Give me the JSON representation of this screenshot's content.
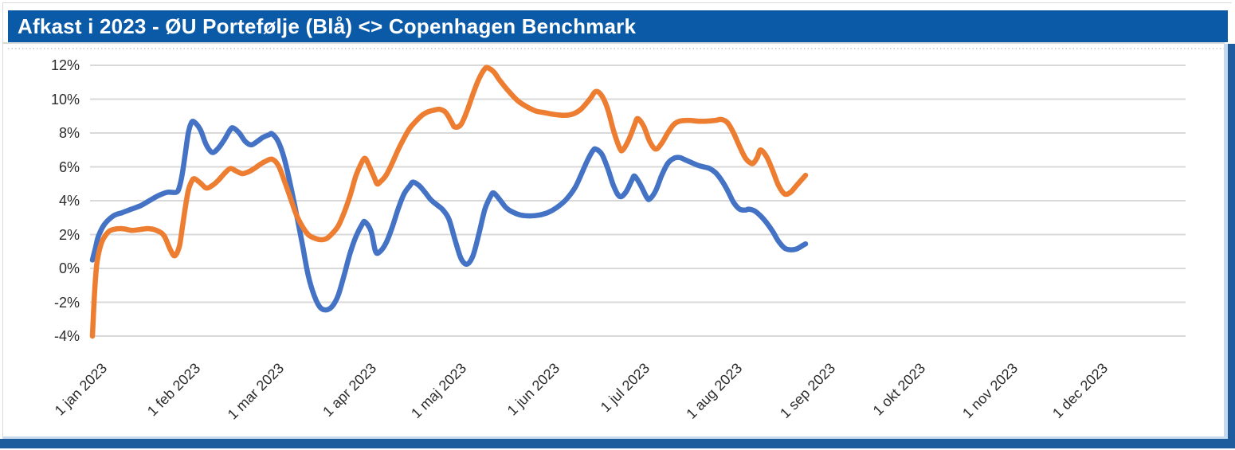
{
  "header": {
    "title": "Afkast i 2023 - ØU Portefølje (Blå) <> Copenhagen Benchmark"
  },
  "colors": {
    "header_bg": "#0b5aa7",
    "frame_dark": "#1e5c9e",
    "frame_light": "#c7d9ec",
    "gridline": "#d9d9d9",
    "axis_text": "#2b2b2b",
    "portfolio_blue": "#4472c4",
    "benchmark_orange": "#ed7d31"
  },
  "chart_data": {
    "type": "line",
    "title": "Afkast i 2023 - ØU Portefølje (Blå) <> Copenhagen Benchmark",
    "xlabel": "",
    "ylabel": "",
    "legend": "none",
    "grid": "horizontal",
    "smooth": true,
    "x_unit": "day_of_year_2023",
    "x_axis": {
      "tick_labels": [
        "1 jan 2023",
        "1 feb 2023",
        "1 mar 2023",
        "1 apr 2023",
        "1 maj 2023",
        "1 jun 2023",
        "1 jul 2023",
        "1 aug 2023",
        "1 sep 2023",
        "1 okt 2023",
        "1 nov 2023",
        "1 dec 2023"
      ],
      "tick_days": [
        0,
        31,
        59,
        90,
        120,
        151,
        181,
        212,
        243,
        273,
        304,
        334
      ],
      "range_days": [
        0,
        365
      ]
    },
    "y_axis": {
      "tick_labels": [
        "12%",
        "10%",
        "8%",
        "6%",
        "4%",
        "2%",
        "0%",
        "-2%",
        "-4%"
      ],
      "ticks_pct": [
        12,
        10,
        8,
        6,
        4,
        2,
        0,
        -2,
        -4
      ],
      "range_pct": [
        -4,
        12
      ]
    },
    "series": [
      {
        "name": "ØU Portefølje",
        "color_key": "portfolio_blue",
        "points": [
          [
            0,
            0.5
          ],
          [
            1,
            1.2
          ],
          [
            2,
            1.9
          ],
          [
            4,
            2.6
          ],
          [
            7,
            3.1
          ],
          [
            10,
            3.3
          ],
          [
            13,
            3.5
          ],
          [
            16,
            3.7
          ],
          [
            19,
            4.0
          ],
          [
            22,
            4.3
          ],
          [
            25,
            4.5
          ],
          [
            28,
            4.5
          ],
          [
            29,
            4.8
          ],
          [
            30,
            5.6
          ],
          [
            31,
            6.8
          ],
          [
            32,
            8.0
          ],
          [
            33,
            8.6
          ],
          [
            34,
            8.65
          ],
          [
            36,
            8.2
          ],
          [
            38,
            7.3
          ],
          [
            40,
            6.85
          ],
          [
            42,
            7.1
          ],
          [
            44,
            7.6
          ],
          [
            46,
            8.2
          ],
          [
            47,
            8.3
          ],
          [
            49,
            8.0
          ],
          [
            51,
            7.5
          ],
          [
            53,
            7.3
          ],
          [
            55,
            7.5
          ],
          [
            57,
            7.75
          ],
          [
            59,
            7.9
          ],
          [
            60,
            7.95
          ],
          [
            62,
            7.5
          ],
          [
            64,
            6.5
          ],
          [
            66,
            5.0
          ],
          [
            68,
            3.3
          ],
          [
            70,
            1.5
          ],
          [
            72,
            -0.4
          ],
          [
            74,
            -1.6
          ],
          [
            76,
            -2.3
          ],
          [
            78,
            -2.45
          ],
          [
            80,
            -2.25
          ],
          [
            82,
            -1.6
          ],
          [
            84,
            -0.4
          ],
          [
            86,
            0.9
          ],
          [
            88,
            1.9
          ],
          [
            90,
            2.6
          ],
          [
            91,
            2.75
          ],
          [
            93,
            2.2
          ],
          [
            94.5,
            1.0
          ],
          [
            96,
            1.0
          ],
          [
            98,
            1.5
          ],
          [
            100,
            2.4
          ],
          [
            102,
            3.5
          ],
          [
            104,
            4.4
          ],
          [
            106,
            4.9
          ],
          [
            107,
            5.1
          ],
          [
            109,
            4.9
          ],
          [
            111,
            4.5
          ],
          [
            113,
            4.05
          ],
          [
            115,
            3.75
          ],
          [
            117,
            3.45
          ],
          [
            119,
            2.9
          ],
          [
            121,
            1.7
          ],
          [
            123,
            0.6
          ],
          [
            125,
            0.25
          ],
          [
            127,
            0.75
          ],
          [
            129,
            2.05
          ],
          [
            131,
            3.5
          ],
          [
            133,
            4.3
          ],
          [
            134,
            4.45
          ],
          [
            136,
            4.05
          ],
          [
            138,
            3.6
          ],
          [
            140,
            3.35
          ],
          [
            143,
            3.15
          ],
          [
            146,
            3.1
          ],
          [
            149,
            3.15
          ],
          [
            152,
            3.3
          ],
          [
            155,
            3.6
          ],
          [
            158,
            4.05
          ],
          [
            161,
            4.75
          ],
          [
            163,
            5.5
          ],
          [
            165,
            6.3
          ],
          [
            167,
            6.95
          ],
          [
            168,
            7.05
          ],
          [
            170,
            6.75
          ],
          [
            172,
            5.9
          ],
          [
            174,
            4.85
          ],
          [
            176,
            4.25
          ],
          [
            178,
            4.5
          ],
          [
            180,
            5.2
          ],
          [
            181,
            5.45
          ],
          [
            183,
            4.9
          ],
          [
            185,
            4.2
          ],
          [
            186,
            4.1
          ],
          [
            188,
            4.6
          ],
          [
            190,
            5.5
          ],
          [
            192,
            6.2
          ],
          [
            194,
            6.5
          ],
          [
            196,
            6.55
          ],
          [
            198,
            6.4
          ],
          [
            200,
            6.25
          ],
          [
            202,
            6.1
          ],
          [
            204,
            6.0
          ],
          [
            206,
            5.9
          ],
          [
            208,
            5.65
          ],
          [
            210,
            5.2
          ],
          [
            212,
            4.6
          ],
          [
            214,
            3.9
          ],
          [
            216,
            3.5
          ],
          [
            218,
            3.45
          ],
          [
            219,
            3.5
          ],
          [
            221,
            3.4
          ],
          [
            223,
            3.1
          ],
          [
            225,
            2.7
          ],
          [
            227,
            2.2
          ],
          [
            229,
            1.6
          ],
          [
            231,
            1.2
          ],
          [
            233,
            1.1
          ],
          [
            235,
            1.15
          ],
          [
            237,
            1.35
          ],
          [
            238,
            1.45
          ]
        ]
      },
      {
        "name": "Copenhagen Benchmark",
        "color_key": "benchmark_orange",
        "points": [
          [
            0,
            -4.0
          ],
          [
            0.7,
            -1.5
          ],
          [
            1.5,
            0.3
          ],
          [
            3,
            1.5
          ],
          [
            5,
            2.1
          ],
          [
            7,
            2.3
          ],
          [
            10,
            2.35
          ],
          [
            13,
            2.25
          ],
          [
            16,
            2.3
          ],
          [
            19,
            2.35
          ],
          [
            22,
            2.2
          ],
          [
            24,
            1.9
          ],
          [
            26,
            1.1
          ],
          [
            27.5,
            0.75
          ],
          [
            29,
            1.3
          ],
          [
            30,
            2.4
          ],
          [
            31,
            3.6
          ],
          [
            32,
            4.6
          ],
          [
            33,
            5.1
          ],
          [
            34,
            5.3
          ],
          [
            36,
            5.05
          ],
          [
            38,
            4.75
          ],
          [
            40,
            4.9
          ],
          [
            42,
            5.2
          ],
          [
            44,
            5.6
          ],
          [
            46,
            5.9
          ],
          [
            48,
            5.75
          ],
          [
            50,
            5.6
          ],
          [
            52,
            5.7
          ],
          [
            54,
            5.9
          ],
          [
            56,
            6.15
          ],
          [
            58,
            6.35
          ],
          [
            60,
            6.45
          ],
          [
            62,
            6.1
          ],
          [
            64,
            5.2
          ],
          [
            66,
            4.2
          ],
          [
            68,
            3.2
          ],
          [
            70,
            2.5
          ],
          [
            72,
            2.0
          ],
          [
            74,
            1.8
          ],
          [
            76,
            1.7
          ],
          [
            78,
            1.75
          ],
          [
            80,
            2.05
          ],
          [
            82,
            2.5
          ],
          [
            84,
            3.3
          ],
          [
            86,
            4.3
          ],
          [
            88,
            5.5
          ],
          [
            90,
            6.3
          ],
          [
            91,
            6.5
          ],
          [
            92,
            6.2
          ],
          [
            94,
            5.4
          ],
          [
            95,
            5.0
          ],
          [
            96,
            5.1
          ],
          [
            98,
            5.5
          ],
          [
            100,
            6.2
          ],
          [
            102,
            7.0
          ],
          [
            104,
            7.7
          ],
          [
            106,
            8.3
          ],
          [
            108,
            8.7
          ],
          [
            110,
            9.05
          ],
          [
            112,
            9.25
          ],
          [
            114,
            9.35
          ],
          [
            116,
            9.4
          ],
          [
            118,
            9.2
          ],
          [
            120,
            8.6
          ],
          [
            121,
            8.35
          ],
          [
            123,
            8.5
          ],
          [
            125,
            9.3
          ],
          [
            127,
            10.3
          ],
          [
            129,
            11.2
          ],
          [
            131,
            11.8
          ],
          [
            132,
            11.85
          ],
          [
            134,
            11.6
          ],
          [
            136,
            11.1
          ],
          [
            139,
            10.45
          ],
          [
            142,
            9.9
          ],
          [
            145,
            9.55
          ],
          [
            148,
            9.3
          ],
          [
            151,
            9.2
          ],
          [
            154,
            9.1
          ],
          [
            157,
            9.05
          ],
          [
            160,
            9.1
          ],
          [
            163,
            9.4
          ],
          [
            166,
            10.0
          ],
          [
            168,
            10.45
          ],
          [
            170,
            10.2
          ],
          [
            172,
            9.4
          ],
          [
            174,
            8.1
          ],
          [
            176,
            7.1
          ],
          [
            177,
            7.0
          ],
          [
            179,
            7.6
          ],
          [
            181,
            8.5
          ],
          [
            182,
            8.85
          ],
          [
            184,
            8.4
          ],
          [
            186,
            7.5
          ],
          [
            188,
            7.05
          ],
          [
            190,
            7.4
          ],
          [
            192,
            8.0
          ],
          [
            194,
            8.5
          ],
          [
            196,
            8.7
          ],
          [
            199,
            8.75
          ],
          [
            202,
            8.7
          ],
          [
            205,
            8.7
          ],
          [
            208,
            8.75
          ],
          [
            210,
            8.8
          ],
          [
            212,
            8.6
          ],
          [
            214,
            8.0
          ],
          [
            216,
            7.2
          ],
          [
            218,
            6.5
          ],
          [
            220,
            6.2
          ],
          [
            221,
            6.3
          ],
          [
            222,
            6.6
          ],
          [
            223,
            7.0
          ],
          [
            225,
            6.6
          ],
          [
            227,
            5.8
          ],
          [
            229,
            4.9
          ],
          [
            231,
            4.4
          ],
          [
            233,
            4.5
          ],
          [
            235,
            4.9
          ],
          [
            237,
            5.3
          ],
          [
            238,
            5.5
          ]
        ]
      }
    ]
  }
}
